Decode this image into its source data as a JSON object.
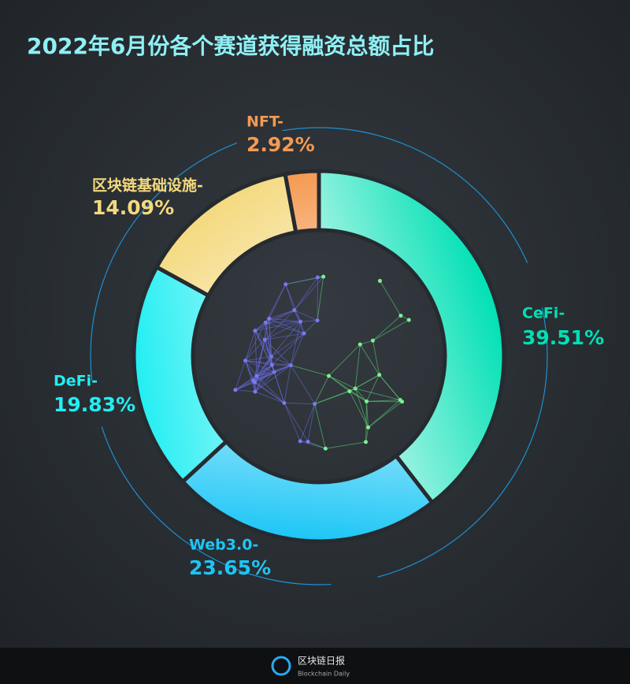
{
  "chart_data": {
    "type": "donut",
    "title": "2022年6月份各个赛道获得融资总额占比",
    "categories": [
      "CeFi-",
      "Web3.0-",
      "DeFi-",
      "区块链基础设施-",
      "NFT-"
    ],
    "values": [
      39.51,
      23.65,
      19.83,
      14.09,
      2.92
    ],
    "value_labels": [
      "39.51%",
      "23.65%",
      "19.83%",
      "14.09%",
      "2.92%"
    ],
    "colors": [
      "#00e0b4",
      "#1cc6f6",
      "#22eef2",
      "#f4d97e",
      "#f59a52"
    ]
  },
  "footer": {
    "brand": "区块链日报",
    "brand_en": "Blockchain Daily"
  }
}
